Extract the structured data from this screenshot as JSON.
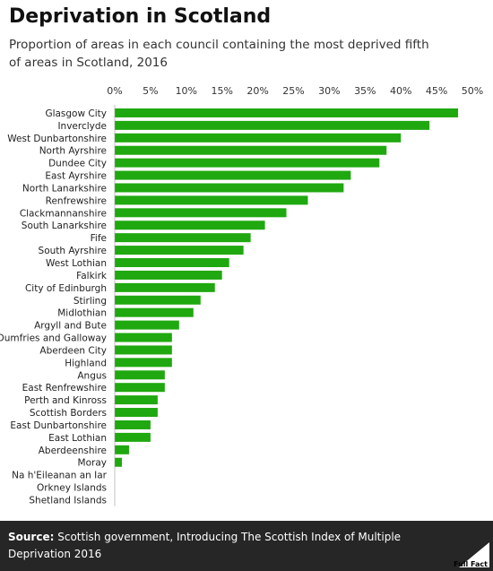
{
  "header": {
    "title": "Deprivation in Scotland",
    "subtitle": "Proportion of areas in each council containing the most deprived fifth of areas in Scotland, 2016"
  },
  "footer": {
    "source_label": "Source:",
    "source_text": "Scottish government, Introducing The Scottish Index of Multiple Deprivation 2016",
    "logo_text": "Full Fact"
  },
  "colors": {
    "bar": "#1fa80f",
    "footer_bg": "#262626"
  },
  "chart_data": {
    "type": "bar",
    "orientation": "horizontal",
    "title": "Deprivation in Scotland",
    "subtitle": "Proportion of areas in each council containing the most deprived fifth of areas in Scotland, 2016",
    "xlim": [
      0,
      50
    ],
    "tick_values": [
      0,
      5,
      10,
      15,
      20,
      25,
      30,
      35,
      40,
      45,
      50
    ],
    "tick_labels": [
      "0%",
      "5%",
      "10%",
      "15%",
      "20%",
      "25%",
      "30%",
      "35%",
      "40%",
      "45%",
      "50%"
    ],
    "axis_position": "top",
    "grid": false,
    "categories": [
      "Glasgow City",
      "Inverclyde",
      "West Dunbartonshire",
      "North Ayrshire",
      "Dundee City",
      "East Ayrshire",
      "North Lanarkshire",
      "Renfrewshire",
      "Clackmannanshire",
      "South Lanarkshire",
      "Fife",
      "South Ayrshire",
      "West Lothian",
      "Falkirk",
      "City of Edinburgh",
      "Stirling",
      "Midlothian",
      "Argyll and Bute",
      "Dumfries and Galloway",
      "Aberdeen City",
      "Highland",
      "Angus",
      "East Renfrewshire",
      "Perth and Kinross",
      "Scottish Borders",
      "East Dunbartonshire",
      "East Lothian",
      "Aberdeenshire",
      "Moray",
      "Na h'Eileanan an Iar",
      "Orkney Islands",
      "Shetland Islands"
    ],
    "values": [
      48,
      44,
      40,
      38,
      37,
      33,
      32,
      27,
      24,
      21,
      19,
      18,
      16,
      15,
      14,
      12,
      11,
      9,
      8,
      8,
      8,
      7,
      7,
      6,
      6,
      5,
      5,
      2,
      1,
      0,
      0,
      0
    ],
    "unit": "%"
  }
}
